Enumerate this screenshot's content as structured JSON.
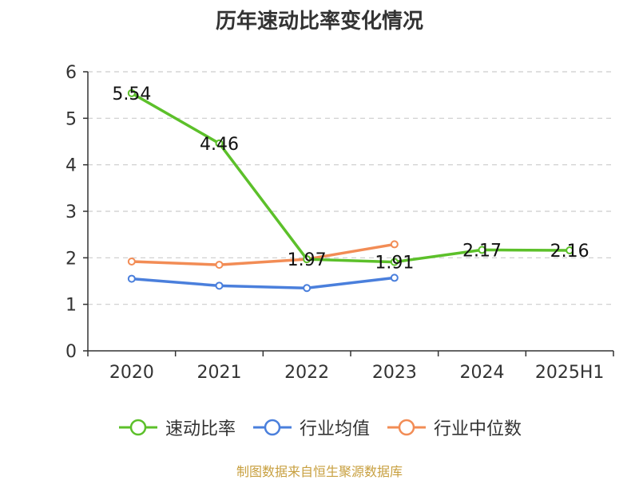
{
  "chart_data": {
    "type": "line",
    "title": "历年速动比率变化情况",
    "categories": [
      "2020",
      "2021",
      "2022",
      "2023",
      "2024",
      "2025H1"
    ],
    "ylim": [
      0,
      6
    ],
    "yticks": [
      0,
      1,
      2,
      3,
      4,
      5,
      6
    ],
    "grid": true,
    "legend_position": "bottom",
    "series": [
      {
        "name": "速动比率",
        "color": "#5cc02a",
        "values": [
          5.54,
          4.46,
          1.97,
          1.91,
          2.17,
          2.16
        ],
        "show_labels": true
      },
      {
        "name": "行业均值",
        "color": "#4a7fdc",
        "values": [
          1.55,
          1.4,
          1.35,
          1.57,
          null,
          null
        ],
        "show_labels": false
      },
      {
        "name": "行业中位数",
        "color": "#f28c55",
        "values": [
          1.92,
          1.85,
          1.97,
          2.29,
          null,
          null
        ],
        "show_labels": false
      }
    ]
  },
  "source": "制图数据来自恒生聚源数据库"
}
